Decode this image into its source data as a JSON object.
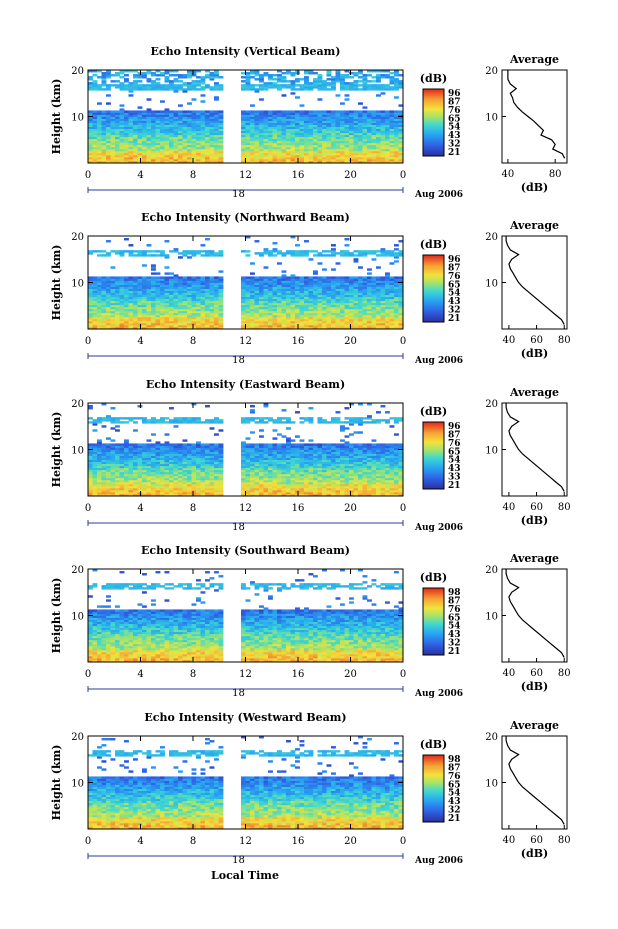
{
  "figure": {
    "xlabel": "Local Time",
    "date_label": "Aug 2006",
    "day_label": "18",
    "avg_title": "Average",
    "avg_xlabel": "(dB)",
    "cbar_unit": "(dB)",
    "ylabel": "Height (km)"
  },
  "chart_data": [
    {
      "type": "heatmap",
      "title": "Echo Intensity (Vertical Beam)",
      "xlabel": "Local Time",
      "ylabel": "Height (km)",
      "x_ticks": [
        "0",
        "4",
        "8",
        "12",
        "16",
        "20",
        "0"
      ],
      "y_ticks": [
        "20",
        "10"
      ],
      "xlim": [
        0,
        24
      ],
      "ylim": [
        0,
        20
      ],
      "data_gap_hours": [
        10.2,
        11.5
      ],
      "colorbar": {
        "label": "(dB)",
        "ticks": [
          "96",
          "87",
          "76",
          "65",
          "54",
          "43",
          "32",
          "21"
        ]
      },
      "profile": {
        "title": "Average",
        "xlabel": "(dB)",
        "xticks": [
          "40",
          "80"
        ],
        "xlim": [
          35,
          90
        ],
        "height_km": [
          1,
          2,
          3,
          4,
          5,
          6,
          7,
          8,
          9,
          10,
          11,
          12,
          13,
          14,
          15,
          16,
          17,
          18,
          19,
          20
        ],
        "mean_db": [
          88,
          86,
          78,
          80,
          77,
          68,
          70,
          66,
          62,
          57,
          52,
          48,
          45,
          44,
          42,
          47,
          42,
          40,
          40,
          40
        ]
      }
    },
    {
      "type": "heatmap",
      "title": "Echo Intensity (Northward Beam)",
      "xlabel": "Local Time",
      "ylabel": "Height (km)",
      "x_ticks": [
        "0",
        "4",
        "8",
        "12",
        "16",
        "20",
        "0"
      ],
      "y_ticks": [
        "20",
        "10"
      ],
      "xlim": [
        0,
        24
      ],
      "ylim": [
        0,
        20
      ],
      "data_gap_hours": [
        10.2,
        11.5
      ],
      "colorbar": {
        "label": "(dB)",
        "ticks": [
          "96",
          "87",
          "76",
          "65",
          "54",
          "43",
          "32",
          "21"
        ]
      },
      "profile": {
        "title": "Average",
        "xlabel": "(dB)",
        "xticks": [
          "40",
          "60",
          "80"
        ],
        "xlim": [
          35,
          82
        ],
        "height_km": [
          1,
          2,
          3,
          4,
          5,
          6,
          7,
          8,
          9,
          10,
          11,
          12,
          13,
          14,
          15,
          16,
          17,
          18,
          19,
          20
        ],
        "mean_db": [
          80,
          78,
          74,
          70,
          66,
          62,
          58,
          54,
          50,
          47,
          45,
          43,
          41,
          40,
          42,
          47,
          41,
          39,
          38,
          38
        ]
      }
    },
    {
      "type": "heatmap",
      "title": "Echo Intensity (Eastward Beam)",
      "xlabel": "Local Time",
      "ylabel": "Height (km)",
      "x_ticks": [
        "0",
        "4",
        "8",
        "12",
        "16",
        "20",
        "0"
      ],
      "y_ticks": [
        "20",
        "10"
      ],
      "xlim": [
        0,
        24
      ],
      "ylim": [
        0,
        20
      ],
      "data_gap_hours": [
        10.2,
        11.5
      ],
      "colorbar": {
        "label": "(dB)",
        "ticks": [
          "96",
          "87",
          "76",
          "65",
          "54",
          "43",
          "33",
          "21"
        ]
      },
      "profile": {
        "title": "Average",
        "xlabel": "(dB)",
        "xticks": [
          "40",
          "60",
          "80"
        ],
        "xlim": [
          35,
          82
        ],
        "height_km": [
          1,
          2,
          3,
          4,
          5,
          6,
          7,
          8,
          9,
          10,
          11,
          12,
          13,
          14,
          15,
          16,
          17,
          18,
          19,
          20
        ],
        "mean_db": [
          80,
          78,
          74,
          70,
          66,
          62,
          58,
          54,
          50,
          47,
          45,
          43,
          41,
          40,
          42,
          47,
          41,
          39,
          38,
          38
        ]
      }
    },
    {
      "type": "heatmap",
      "title": "Echo Intensity (Southward Beam)",
      "xlabel": "Local Time",
      "ylabel": "Height (km)",
      "x_ticks": [
        "0",
        "4",
        "8",
        "12",
        "16",
        "20",
        "0"
      ],
      "y_ticks": [
        "20",
        "10"
      ],
      "xlim": [
        0,
        24
      ],
      "ylim": [
        0,
        20
      ],
      "data_gap_hours": [
        10.2,
        11.5
      ],
      "colorbar": {
        "label": "(dB)",
        "ticks": [
          "98",
          "87",
          "76",
          "65",
          "54",
          "43",
          "32",
          "21"
        ]
      },
      "profile": {
        "title": "Average",
        "xlabel": "(dB)",
        "xticks": [
          "40",
          "60",
          "80"
        ],
        "xlim": [
          35,
          82
        ],
        "height_km": [
          1,
          2,
          3,
          4,
          5,
          6,
          7,
          8,
          9,
          10,
          11,
          12,
          13,
          14,
          15,
          16,
          17,
          18,
          19,
          20
        ],
        "mean_db": [
          80,
          78,
          74,
          70,
          66,
          62,
          58,
          54,
          50,
          47,
          45,
          43,
          41,
          40,
          42,
          47,
          41,
          39,
          38,
          38
        ]
      }
    },
    {
      "type": "heatmap",
      "title": "Echo Intensity (Westward Beam)",
      "xlabel": "Local Time",
      "ylabel": "Height (km)",
      "x_ticks": [
        "0",
        "4",
        "8",
        "12",
        "16",
        "20",
        "0"
      ],
      "y_ticks": [
        "20",
        "10"
      ],
      "xlim": [
        0,
        24
      ],
      "ylim": [
        0,
        20
      ],
      "data_gap_hours": [
        10.2,
        11.5
      ],
      "colorbar": {
        "label": "(dB)",
        "ticks": [
          "98",
          "87",
          "76",
          "65",
          "54",
          "43",
          "32",
          "21"
        ]
      },
      "profile": {
        "title": "Average",
        "xlabel": "(dB)",
        "xticks": [
          "40",
          "60",
          "80"
        ],
        "xlim": [
          35,
          82
        ],
        "height_km": [
          1,
          2,
          3,
          4,
          5,
          6,
          7,
          8,
          9,
          10,
          11,
          12,
          13,
          14,
          15,
          16,
          17,
          18,
          19,
          20
        ],
        "mean_db": [
          80,
          78,
          74,
          70,
          66,
          62,
          58,
          54,
          50,
          47,
          45,
          43,
          41,
          40,
          42,
          47,
          41,
          39,
          38,
          38
        ]
      }
    }
  ]
}
